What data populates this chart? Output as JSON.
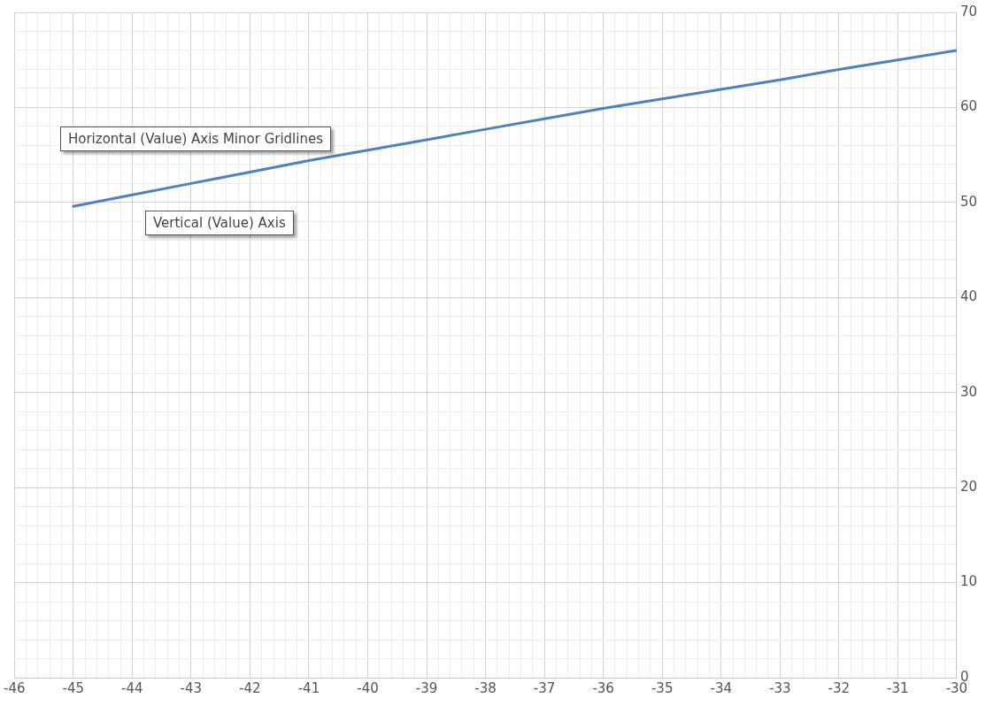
{
  "chart_data": {
    "type": "line",
    "x": [
      -45,
      -44,
      -43,
      -42,
      -41,
      -40,
      -39,
      -38,
      -37,
      -36,
      -35,
      -34,
      -33,
      -32,
      -31,
      -30
    ],
    "series": [
      {
        "color": "#4f81bd",
        "values": [
          49.6,
          50.8,
          52.0,
          53.2,
          54.4,
          55.5,
          56.6,
          57.7,
          58.8,
          59.9,
          60.9,
          61.9,
          62.9,
          64.0,
          65.0,
          66.0
        ]
      }
    ],
    "xlim": [
      -46,
      -30
    ],
    "xticks": [
      -46,
      {
        "value": -45.8,
        "label": null
      },
      {
        "value": -45.6,
        "label": null
      },
      {
        "value": -45.4,
        "label": null
      },
      {
        "value": -45.2,
        "label": null
      },
      -45,
      {
        "value": -44.8,
        "label": null
      },
      {
        "value": -44.6,
        "label": null
      },
      {
        "value": -44.4,
        "label": null
      },
      {
        "value": -44.2,
        "label": null
      },
      -44,
      {
        "value": -43.8,
        "label": null
      },
      {
        "value": -43.6,
        "label": null
      },
      {
        "value": -43.4,
        "label": null
      },
      {
        "value": -43.2,
        "label": null
      },
      -43,
      {
        "value": -42.8,
        "label": null
      },
      {
        "value": -42.6,
        "label": null
      },
      {
        "value": -42.4,
        "label": null
      },
      {
        "value": -42.2,
        "label": null
      },
      -42,
      {
        "value": -41.8,
        "label": null
      },
      {
        "value": -41.6,
        "label": null
      },
      {
        "value": -41.4,
        "label": null
      },
      {
        "value": -41.2,
        "label": null
      },
      -41,
      {
        "value": -40.8,
        "label": null
      },
      {
        "value": -40.6,
        "label": null
      },
      {
        "value": -40.4,
        "label": null
      },
      {
        "value": -40.2,
        "label": null
      },
      -40,
      {
        "value": -39.8,
        "label": null
      },
      {
        "value": -39.6,
        "label": null
      },
      {
        "value": -39.4,
        "label": null
      },
      {
        "value": -39.2,
        "label": null
      },
      -39,
      {
        "value": -38.8,
        "label": null
      },
      {
        "value": -38.6,
        "label": null
      },
      {
        "value": -38.4,
        "label": null
      },
      {
        "value": -38.2,
        "label": null
      },
      -38,
      {
        "value": -37.8,
        "label": null
      },
      {
        "value": -37.6,
        "label": null
      },
      {
        "value": -37.4,
        "label": null
      },
      {
        "value": -37.2,
        "label": null
      },
      -37,
      {
        "value": -36.8,
        "label": null
      },
      {
        "value": -36.6,
        "label": null
      },
      {
        "value": -36.4,
        "label": null
      },
      {
        "value": -36.2,
        "label": null
      },
      -36,
      {
        "value": -35.8,
        "label": null
      },
      {
        "value": -35.6,
        "label": null
      },
      {
        "value": -35.4,
        "label": null
      },
      {
        "value": -35.2,
        "label": null
      },
      -35,
      {
        "value": -34.8,
        "label": null
      },
      {
        "value": -34.6,
        "label": null
      },
      {
        "value": -34.4,
        "label": null
      },
      {
        "value": -34.2,
        "label": null
      },
      -34,
      {
        "value": -33.8,
        "label": null
      },
      {
        "value": -33.6,
        "label": null
      },
      {
        "value": -33.4,
        "label": null
      },
      {
        "value": -33.2,
        "label": null
      },
      -33,
      {
        "value": -32.8,
        "label": null
      },
      {
        "value": -32.6,
        "label": null
      },
      {
        "value": -32.4,
        "label": null
      },
      {
        "value": -32.2,
        "label": null
      },
      -32,
      {
        "value": -31.8,
        "label": null
      },
      {
        "value": -31.6,
        "label": null
      },
      {
        "value": -31.4,
        "label": null
      },
      {
        "value": -31.2,
        "label": null
      },
      -31,
      {
        "value": -30.8,
        "label": null
      },
      {
        "value": -30.6,
        "label": null
      },
      {
        "value": -30.4,
        "label": null
      },
      {
        "value": -30.2,
        "label": null
      },
      -30
    ],
    "ylim": [
      0,
      70
    ],
    "yticks": [
      0,
      {
        "value": 2,
        "label": null
      },
      {
        "value": 4,
        "label": null
      },
      {
        "value": 6,
        "label": null
      },
      {
        "value": 8,
        "label": null
      },
      10,
      {
        "value": 12,
        "label": null
      },
      {
        "value": 14,
        "label": null
      },
      {
        "value": 16,
        "label": null
      },
      {
        "value": 18,
        "label": null
      },
      20,
      {
        "value": 22,
        "label": null
      },
      {
        "value": 24,
        "label": null
      },
      {
        "value": 26,
        "label": null
      },
      {
        "value": 28,
        "label": null
      },
      30,
      {
        "value": 32,
        "label": null
      },
      {
        "value": 34,
        "label": null
      },
      {
        "value": 36,
        "label": null
      },
      {
        "value": 38,
        "label": null
      },
      40,
      {
        "value": 42,
        "label": null
      },
      {
        "value": 44,
        "label": null
      },
      {
        "value": 46,
        "label": null
      },
      {
        "value": 48,
        "label": null
      },
      50,
      {
        "value": 52,
        "label": null
      },
      {
        "value": 54,
        "label": null
      },
      {
        "value": 56,
        "label": null
      },
      {
        "value": 58,
        "label": null
      },
      60,
      {
        "value": 62,
        "label": null
      },
      {
        "value": 64,
        "label": null
      },
      {
        "value": 66,
        "label": null
      },
      {
        "value": 68,
        "label": null
      },
      70
    ],
    "grid": true,
    "legend": false,
    "marker": "none",
    "line_style": "solid",
    "annotations": [
      "Horizontal (Value) Axis Minor Gridlines",
      "Vertical (Value) Axis"
    ]
  }
}
